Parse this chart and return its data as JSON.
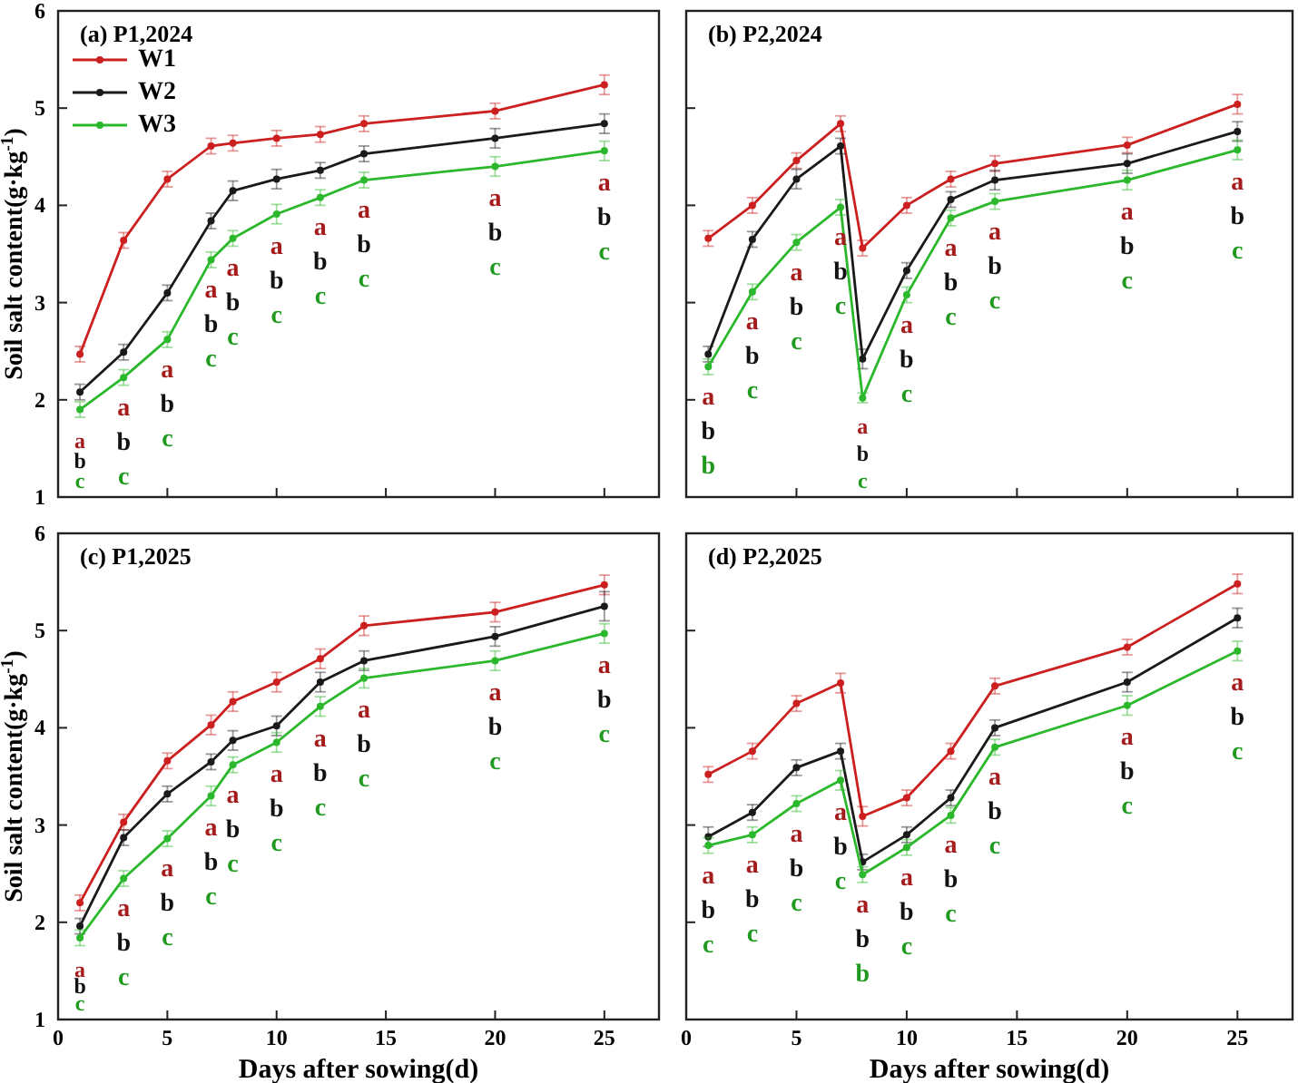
{
  "chart_data": [
    {
      "type": "line",
      "title": "(a) P1,2024",
      "ylabel": "Soil salt content(g·kg$^{-1}$)",
      "x": [
        1,
        3,
        5,
        7,
        8,
        10,
        12,
        14,
        20,
        25
      ],
      "xlim": [
        0,
        27.5
      ],
      "xticks": [
        0,
        5,
        10,
        15,
        20,
        25
      ],
      "ylim": [
        1,
        6
      ],
      "yticks": [
        1,
        2,
        3,
        4,
        5,
        6
      ],
      "tick_labels": "y",
      "legend": "top left",
      "marker": "circle",
      "line_style": "solid",
      "grid": false,
      "series": [
        {
          "name": "W1",
          "color": "#cc2020",
          "values": [
            2.47,
            3.64,
            4.27,
            4.61,
            4.64,
            4.69,
            4.73,
            4.84,
            4.97,
            5.24
          ],
          "errors": [
            0.08,
            0.08,
            0.08,
            0.08,
            0.08,
            0.08,
            0.08,
            0.08,
            0.08,
            0.1
          ]
        },
        {
          "name": "W2",
          "color": "#1a1a1a",
          "values": [
            2.08,
            2.49,
            3.1,
            3.84,
            4.15,
            4.27,
            4.36,
            4.53,
            4.69,
            4.84
          ],
          "errors": [
            0.08,
            0.08,
            0.08,
            0.08,
            0.1,
            0.1,
            0.08,
            0.08,
            0.1,
            0.1
          ]
        },
        {
          "name": "W3",
          "color": "#2cb82c",
          "values": [
            1.9,
            2.23,
            2.62,
            3.44,
            3.66,
            3.91,
            4.08,
            4.26,
            4.4,
            4.56
          ],
          "errors": [
            0.08,
            0.08,
            0.08,
            0.08,
            0.08,
            0.1,
            0.08,
            0.08,
            0.1,
            0.1
          ]
        }
      ],
      "annotations": [
        "a",
        "b",
        "c",
        "a",
        "b",
        "c",
        "a",
        "b",
        "c",
        "a",
        "b",
        "c",
        "a",
        "b",
        "c",
        "a",
        "b",
        "c",
        "a",
        "b",
        "c",
        "a",
        "b",
        "c",
        "a",
        "b",
        "c",
        "a",
        "b",
        "c"
      ]
    },
    {
      "type": "line",
      "title": "(b) P2,2024",
      "x": [
        1,
        3,
        5,
        7,
        8,
        10,
        12,
        14,
        20,
        25
      ],
      "xlim": [
        0,
        27.5
      ],
      "xticks": [
        0,
        5,
        10,
        15,
        20,
        25
      ],
      "ylim": [
        1,
        6
      ],
      "yticks": [
        1,
        2,
        3,
        4,
        5,
        6
      ],
      "tick_labels": false,
      "marker": "circle",
      "line_style": "solid",
      "grid": false,
      "series": [
        {
          "color": "#cc2020",
          "values": [
            3.66,
            4.0,
            4.46,
            4.84,
            3.56,
            4.0,
            4.27,
            4.43,
            4.62,
            5.04
          ],
          "errors": [
            0.08,
            0.08,
            0.08,
            0.08,
            0.08,
            0.08,
            0.08,
            0.08,
            0.08,
            0.1
          ]
        },
        {
          "color": "#1a1a1a",
          "values": [
            2.47,
            3.65,
            4.27,
            4.61,
            2.42,
            3.33,
            4.06,
            4.26,
            4.43,
            4.76
          ],
          "errors": [
            0.08,
            0.08,
            0.1,
            0.08,
            0.1,
            0.08,
            0.08,
            0.1,
            0.1,
            0.1
          ]
        },
        {
          "color": "#2cb82c",
          "values": [
            2.34,
            3.11,
            3.62,
            3.98,
            2.02,
            3.08,
            3.87,
            4.04,
            4.26,
            4.57
          ],
          "errors": [
            0.08,
            0.08,
            0.08,
            0.08,
            0.05,
            0.08,
            0.08,
            0.08,
            0.1,
            0.1
          ]
        }
      ],
      "annotations": [
        "a",
        "b",
        "b",
        "a",
        "b",
        "c",
        "a",
        "b",
        "c",
        "a",
        "b",
        "c",
        "a",
        "b",
        "c",
        "a",
        "b",
        "c",
        "a",
        "b",
        "c",
        "a",
        "b",
        "c",
        "a",
        "b",
        "c",
        "a",
        "b",
        "c"
      ]
    },
    {
      "type": "line",
      "title": "(c) P1,2025",
      "xlabel": "Days after sowing(d)",
      "ylabel": "Soil salt content(g·kg$^{-1}$)",
      "x": [
        1,
        3,
        5,
        7,
        8,
        10,
        12,
        14,
        20,
        25
      ],
      "xlim": [
        0,
        27.5
      ],
      "xticks": [
        0,
        5,
        10,
        15,
        20,
        25
      ],
      "ylim": [
        1,
        6
      ],
      "yticks": [
        1,
        2,
        3,
        4,
        5,
        6
      ],
      "marker": "circle",
      "line_style": "solid",
      "grid": false,
      "series": [
        {
          "color": "#cc2020",
          "values": [
            2.2,
            3.03,
            3.66,
            4.03,
            4.27,
            4.47,
            4.71,
            5.05,
            5.19,
            5.47
          ],
          "errors": [
            0.08,
            0.08,
            0.08,
            0.1,
            0.1,
            0.1,
            0.1,
            0.1,
            0.1,
            0.1
          ]
        },
        {
          "color": "#1a1a1a",
          "values": [
            1.96,
            2.87,
            3.32,
            3.65,
            3.87,
            4.02,
            4.47,
            4.69,
            4.94,
            5.25
          ],
          "errors": [
            0.08,
            0.08,
            0.08,
            0.08,
            0.1,
            0.1,
            0.1,
            0.1,
            0.1,
            0.15
          ]
        },
        {
          "color": "#2cb82c",
          "values": [
            1.84,
            2.45,
            2.86,
            3.3,
            3.62,
            3.85,
            4.22,
            4.51,
            4.69,
            4.97
          ],
          "errors": [
            0.08,
            0.08,
            0.08,
            0.1,
            0.08,
            0.1,
            0.1,
            0.1,
            0.1,
            0.1
          ]
        }
      ],
      "annotations": [
        "a",
        "b",
        "c",
        "a",
        "b",
        "c",
        "a",
        "b",
        "c",
        "a",
        "b",
        "c",
        "a",
        "b",
        "c",
        "a",
        "b",
        "c",
        "a",
        "b",
        "c",
        "a",
        "b",
        "c",
        "a",
        "b",
        "c",
        "a",
        "b",
        "c"
      ]
    },
    {
      "type": "line",
      "title": "(d) P2,2025",
      "xlabel": "Days after sowing(d)",
      "x": [
        1,
        3,
        5,
        7,
        8,
        10,
        12,
        14,
        20,
        25
      ],
      "xlim": [
        0,
        27.5
      ],
      "xticks": [
        0,
        5,
        10,
        15,
        20,
        25
      ],
      "ylim": [
        1,
        6
      ],
      "yticks": [
        1,
        2,
        3,
        4,
        5,
        6
      ],
      "tick_labels": "x",
      "marker": "circle",
      "line_style": "solid",
      "grid": false,
      "series": [
        {
          "color": "#cc2020",
          "values": [
            3.52,
            3.76,
            4.25,
            4.46,
            3.09,
            3.28,
            3.76,
            4.43,
            4.83,
            5.48
          ],
          "errors": [
            0.08,
            0.08,
            0.08,
            0.1,
            0.1,
            0.08,
            0.08,
            0.08,
            0.08,
            0.1
          ]
        },
        {
          "color": "#1a1a1a",
          "values": [
            2.88,
            3.13,
            3.59,
            3.76,
            2.62,
            2.9,
            3.28,
            4.0,
            4.47,
            5.13
          ],
          "errors": [
            0.1,
            0.08,
            0.08,
            0.08,
            0.08,
            0.08,
            0.08,
            0.08,
            0.1,
            0.1
          ]
        },
        {
          "color": "#2cb82c",
          "values": [
            2.79,
            2.9,
            3.22,
            3.46,
            2.49,
            2.77,
            3.1,
            3.8,
            4.23,
            4.79
          ],
          "errors": [
            0.08,
            0.08,
            0.08,
            0.1,
            0.08,
            0.08,
            0.08,
            0.08,
            0.1,
            0.1
          ]
        }
      ],
      "annotations": [
        "a",
        "b",
        "c",
        "a",
        "b",
        "c",
        "a",
        "b",
        "c",
        "a",
        "b",
        "c",
        "a",
        "b",
        "b",
        "a",
        "b",
        "c",
        "a",
        "b",
        "c",
        "a",
        "b",
        "c",
        "a",
        "b",
        "c",
        "a",
        "b",
        "c"
      ]
    }
  ]
}
